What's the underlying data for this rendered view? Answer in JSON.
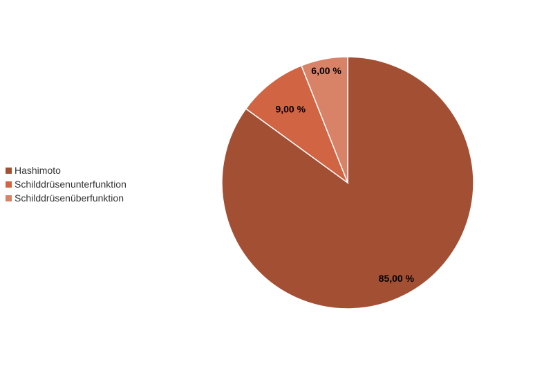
{
  "chart_data": {
    "type": "pie",
    "title": "",
    "categories": [
      "Hashimoto",
      "Schilddrüsenunterfunktion",
      "Schilddrüsenüberfunktion"
    ],
    "values": [
      85,
      9,
      6
    ],
    "value_labels": [
      "85,00 %",
      "9,00 %",
      "6,00 %"
    ],
    "colors": [
      "#a34f33",
      "#d06443",
      "#d88268"
    ],
    "legend_position": "left",
    "start_angle_deg": 0,
    "direction": "clockwise"
  }
}
